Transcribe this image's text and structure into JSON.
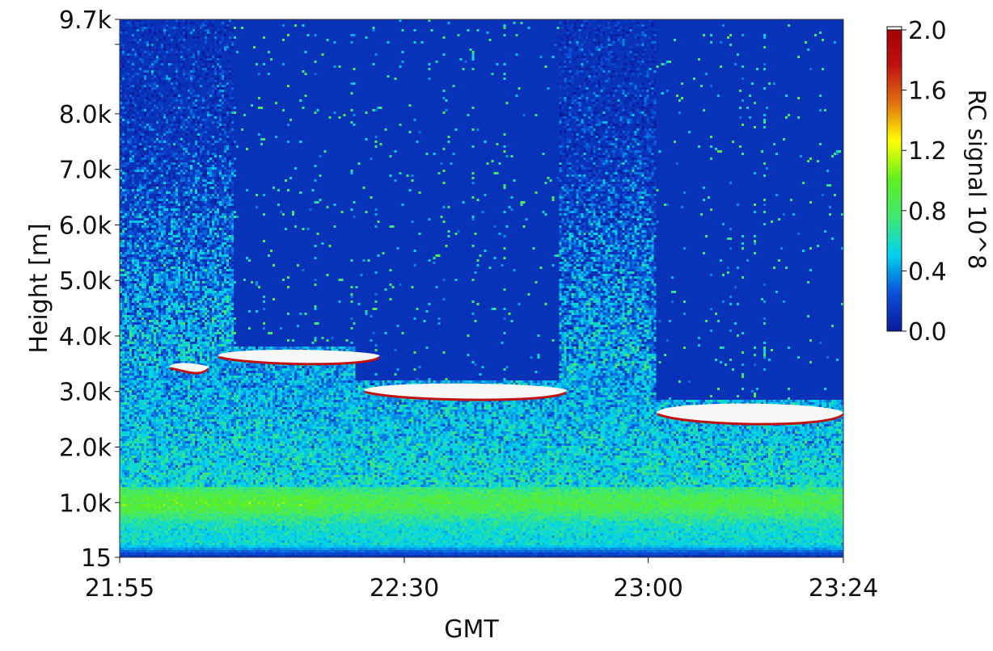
{
  "chart_data": {
    "type": "heatmap",
    "xlabel": "GMT",
    "ylabel": "Height [m]",
    "x_unit": "minutes",
    "x_range": [
      "21:55",
      "23:24"
    ],
    "x_ticks": [
      "21:55",
      "22:30",
      "23:00",
      "23:24"
    ],
    "y_range": [
      15,
      9700
    ],
    "y_ticks": [
      {
        "value": 15,
        "label": "15"
      },
      {
        "value": 1000,
        "label": "1.0k"
      },
      {
        "value": 2000,
        "label": "2.0k"
      },
      {
        "value": 3000,
        "label": "3.0k"
      },
      {
        "value": 4000,
        "label": "4.0k"
      },
      {
        "value": 5000,
        "label": "5.0k"
      },
      {
        "value": 6000,
        "label": "6.0k"
      },
      {
        "value": 7000,
        "label": "7.0k"
      },
      {
        "value": 8000,
        "label": "8.0k"
      },
      {
        "value": 9250,
        "label": ""
      },
      {
        "value": 9700,
        "label": "9.7k"
      }
    ],
    "colorbar": {
      "label": "RC signal 10^8",
      "range": [
        0.0,
        2.0
      ],
      "ticks": [
        "0.0",
        "0.4",
        "0.8",
        "1.2",
        "1.6",
        "2.0"
      ],
      "colors": [
        "#0a1a9a",
        "#0a50d8",
        "#00d2f0",
        "#40e870",
        "#60f020",
        "#ffff00",
        "#e07010",
        "#c01010",
        "#a00000"
      ],
      "saturation_color": "#f8f8f8",
      "background_color": "#0832b8"
    },
    "boundary_layer_peak_height": 1000,
    "aerosol_columns": [
      {
        "start": "21:55",
        "end": "22:09"
      },
      {
        "start": "22:49",
        "end": "23:01"
      }
    ],
    "cloud_layers": [
      {
        "start": "22:01",
        "end": "22:06",
        "base": 3350,
        "top": 3550
      },
      {
        "start": "22:07",
        "end": "22:27",
        "base": 3500,
        "top": 3800
      },
      {
        "start": "22:25",
        "end": "22:50",
        "base": 2850,
        "top": 3200
      },
      {
        "start": "23:01",
        "end": "23:24",
        "base": 2400,
        "top": 2850
      }
    ]
  }
}
